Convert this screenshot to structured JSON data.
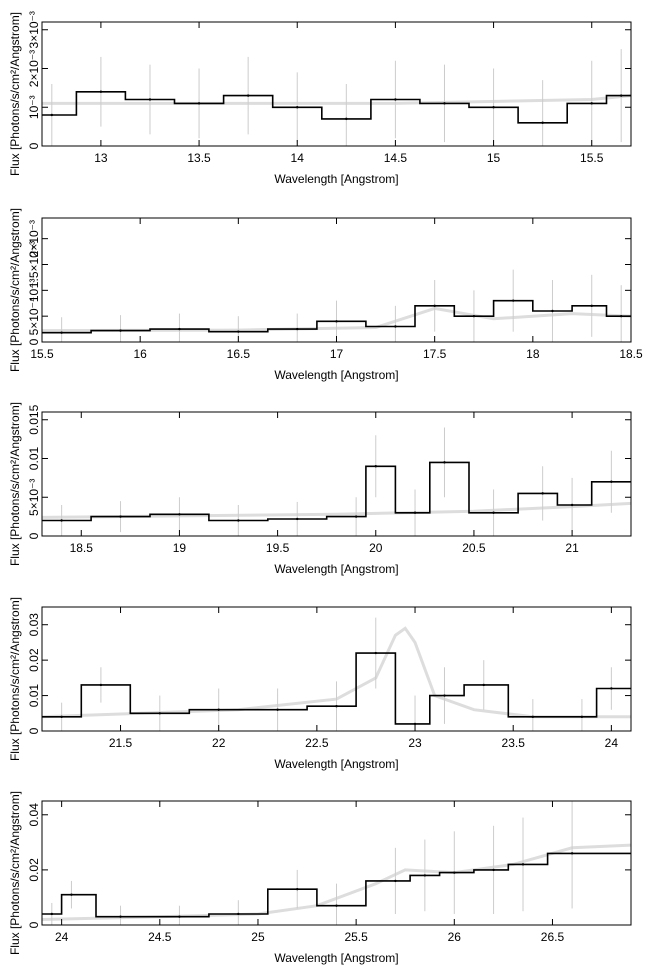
{
  "chart_data": [
    {
      "type": "line",
      "xlabel": "Wavelength [Angstrom]",
      "ylabel": "Flux [Photons/s/cm²/Angstrom]",
      "xlim": [
        12.7,
        15.7
      ],
      "ylim": [
        0,
        0.0032
      ],
      "x_ticks": [
        13,
        13.5,
        14,
        14.5,
        15,
        15.5
      ],
      "x_tick_labels": [
        "13",
        "13.5",
        "14",
        "14.5",
        "15",
        "15.5"
      ],
      "y_ticks": [
        0,
        0.001,
        0.002,
        0.003
      ],
      "y_tick_labels": [
        "0",
        "10⁻³",
        "2×10⁻³",
        "3×10⁻³"
      ],
      "grid": false,
      "series": [
        {
          "x": [
            12.75,
            13.0,
            13.25,
            13.5,
            13.75,
            14.0,
            14.25,
            14.5,
            14.75,
            15.0,
            15.25,
            15.5,
            15.65
          ],
          "values": [
            0.0008,
            0.0014,
            0.0012,
            0.0011,
            0.0013,
            0.001,
            0.0007,
            0.0012,
            0.0011,
            0.001,
            0.0006,
            0.0011,
            0.0013
          ],
          "error": [
            0.0008,
            0.0009,
            0.0009,
            0.0009,
            0.001,
            0.0009,
            0.0009,
            0.001,
            0.001,
            0.001,
            0.0011,
            0.0011,
            0.0012
          ]
        }
      ],
      "model": [
        {
          "x": [
            12.7,
            13.5,
            14.5,
            15.5,
            15.7
          ],
          "values": [
            0.0011,
            0.0011,
            0.0011,
            0.0012,
            0.0013
          ]
        }
      ]
    },
    {
      "type": "line",
      "xlabel": "Wavelength [Angstrom]",
      "ylabel": "Flux [Photons/s/cm²/Angstrom]",
      "xlim": [
        15.5,
        18.5
      ],
      "ylim": [
        0,
        0.0024
      ],
      "x_ticks": [
        15.5,
        16,
        16.5,
        17,
        17.5,
        18,
        18.5
      ],
      "x_tick_labels": [
        "15.5",
        "16",
        "16.5",
        "17",
        "17.5",
        "18",
        "18.5"
      ],
      "y_ticks": [
        0,
        0.0005,
        0.001,
        0.0015,
        0.002
      ],
      "y_tick_labels": [
        "0",
        "5×10⁻⁴",
        "10⁻³",
        "1.5×10⁻³",
        "2×10⁻³"
      ],
      "grid": false,
      "series": [
        {
          "x": [
            15.6,
            15.9,
            16.2,
            16.5,
            16.8,
            17.0,
            17.3,
            17.5,
            17.7,
            17.9,
            18.1,
            18.3,
            18.45
          ],
          "values": [
            0.00018,
            0.00022,
            0.00025,
            0.0002,
            0.00025,
            0.0004,
            0.0003,
            0.0007,
            0.0005,
            0.0008,
            0.0006,
            0.0007,
            0.0005
          ],
          "error": [
            0.0003,
            0.0003,
            0.0003,
            0.0003,
            0.0003,
            0.0004,
            0.0004,
            0.0005,
            0.0005,
            0.0006,
            0.0006,
            0.0006,
            0.0006
          ]
        }
      ],
      "model": [
        {
          "x": [
            15.5,
            16.5,
            17.2,
            17.5,
            17.8,
            18.2,
            18.5
          ],
          "values": [
            0.00022,
            0.00023,
            0.00028,
            0.00065,
            0.00045,
            0.00055,
            0.0005
          ]
        }
      ]
    },
    {
      "type": "line",
      "xlabel": "Wavelength [Angstrom]",
      "ylabel": "Flux [Photons/s/cm²/Angstrom]",
      "xlim": [
        18.3,
        21.3
      ],
      "ylim": [
        0,
        0.016
      ],
      "x_ticks": [
        18.5,
        19,
        19.5,
        20,
        20.5,
        21
      ],
      "x_tick_labels": [
        "18.5",
        "19",
        "19.5",
        "20",
        "20.5",
        "21"
      ],
      "y_ticks": [
        0,
        0.005,
        0.01,
        0.015
      ],
      "y_tick_labels": [
        "0",
        "5×10⁻³",
        "0.01",
        "0.015"
      ],
      "grid": false,
      "series": [
        {
          "x": [
            18.4,
            18.7,
            19.0,
            19.3,
            19.6,
            19.9,
            20.0,
            20.2,
            20.35,
            20.6,
            20.85,
            21.0,
            21.2
          ],
          "values": [
            0.002,
            0.0025,
            0.0028,
            0.002,
            0.0022,
            0.0025,
            0.009,
            0.003,
            0.0095,
            0.003,
            0.0055,
            0.004,
            0.007
          ],
          "error": [
            0.002,
            0.002,
            0.0022,
            0.002,
            0.0022,
            0.0025,
            0.004,
            0.003,
            0.0045,
            0.003,
            0.0035,
            0.0035,
            0.004
          ]
        }
      ],
      "model": [
        {
          "x": [
            18.3,
            19.0,
            19.8,
            20.5,
            21.0,
            21.3
          ],
          "values": [
            0.0024,
            0.0026,
            0.0028,
            0.0032,
            0.0038,
            0.0042
          ]
        }
      ]
    },
    {
      "type": "line",
      "xlabel": "Wavelength [Angstrom]",
      "ylabel": "Flux [Photons/s/cm²/Angstrom]",
      "xlim": [
        21.1,
        24.1
      ],
      "ylim": [
        0,
        0.035
      ],
      "x_ticks": [
        21.5,
        22,
        22.5,
        23,
        23.5,
        24
      ],
      "x_tick_labels": [
        "21.5",
        "22",
        "22.5",
        "23",
        "23.5",
        "24"
      ],
      "y_ticks": [
        0,
        0.01,
        0.02,
        0.03
      ],
      "y_tick_labels": [
        "0",
        "0.01",
        "0.02",
        "0.03"
      ],
      "grid": false,
      "series": [
        {
          "x": [
            21.2,
            21.4,
            21.7,
            22.0,
            22.3,
            22.6,
            22.8,
            23.0,
            23.15,
            23.35,
            23.6,
            23.85,
            24.0
          ],
          "values": [
            0.004,
            0.013,
            0.005,
            0.006,
            0.006,
            0.007,
            0.022,
            0.002,
            0.01,
            0.013,
            0.004,
            0.004,
            0.012
          ],
          "error": [
            0.004,
            0.005,
            0.005,
            0.006,
            0.006,
            0.007,
            0.01,
            0.008,
            0.008,
            0.007,
            0.005,
            0.005,
            0.006
          ]
        }
      ],
      "model": [
        {
          "x": [
            21.1,
            21.6,
            22.1,
            22.6,
            22.8,
            22.9,
            22.95,
            23.0,
            23.1,
            23.3,
            23.6,
            24.1
          ],
          "values": [
            0.004,
            0.005,
            0.006,
            0.009,
            0.015,
            0.027,
            0.029,
            0.025,
            0.01,
            0.006,
            0.004,
            0.004
          ]
        }
      ]
    },
    {
      "type": "line",
      "xlabel": "Wavelength [Angstrom]",
      "ylabel": "Flux [Photons/s/cm²/Angstrom]",
      "xlim": [
        23.9,
        26.9
      ],
      "ylim": [
        0,
        0.045
      ],
      "x_ticks": [
        24,
        24.5,
        25,
        25.5,
        26,
        26.5
      ],
      "x_tick_labels": [
        "24",
        "24.5",
        "25",
        "25.5",
        "26",
        "26.5"
      ],
      "y_ticks": [
        0,
        0.02,
        0.04
      ],
      "y_tick_labels": [
        "0",
        "0.02",
        "0.04"
      ],
      "grid": false,
      "series": [
        {
          "x": [
            23.95,
            24.05,
            24.3,
            24.6,
            24.9,
            25.2,
            25.4,
            25.7,
            25.85,
            26.0,
            26.2,
            26.35,
            26.6
          ],
          "values": [
            0.004,
            0.011,
            0.003,
            0.003,
            0.004,
            0.013,
            0.007,
            0.016,
            0.018,
            0.019,
            0.02,
            0.022,
            0.026
          ],
          "error": [
            0.004,
            0.005,
            0.004,
            0.004,
            0.005,
            0.007,
            0.008,
            0.012,
            0.013,
            0.015,
            0.016,
            0.017,
            0.02
          ]
        }
      ],
      "model": [
        {
          "x": [
            23.9,
            24.5,
            25.0,
            25.3,
            25.6,
            25.75,
            26.0,
            26.3,
            26.6,
            26.9
          ],
          "values": [
            0.002,
            0.003,
            0.004,
            0.007,
            0.015,
            0.02,
            0.019,
            0.022,
            0.028,
            0.029
          ]
        }
      ]
    }
  ]
}
